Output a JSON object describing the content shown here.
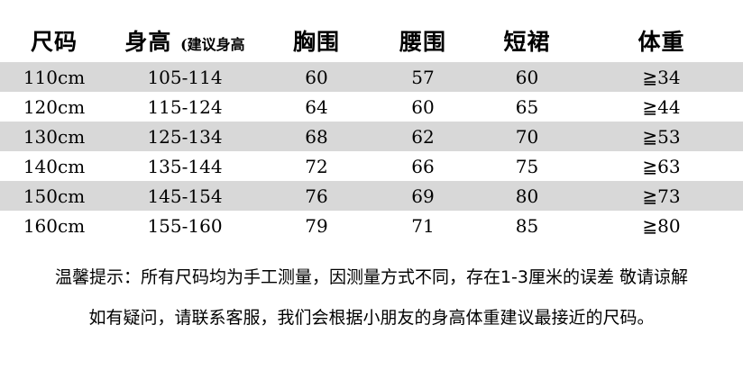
{
  "chart_data": {
    "type": "table",
    "columns": [
      {
        "label": "尺码",
        "sub": ""
      },
      {
        "label": "身高",
        "sub": "(建议身高"
      },
      {
        "label": "胸围",
        "sub": ""
      },
      {
        "label": "腰围",
        "sub": ""
      },
      {
        "label": "短裙",
        "sub": ""
      },
      {
        "label": "体重",
        "sub": ""
      }
    ],
    "rows": [
      [
        "110cm",
        "105-114",
        "60",
        "57",
        "60",
        "≧34"
      ],
      [
        "120cm",
        "115-124",
        "64",
        "60",
        "65",
        "≧44"
      ],
      [
        "130cm",
        "125-134",
        "68",
        "62",
        "70",
        "≧53"
      ],
      [
        "140cm",
        "135-144",
        "72",
        "66",
        "75",
        "≧63"
      ],
      [
        "150cm",
        "145-154",
        "76",
        "69",
        "80",
        "≧73"
      ],
      [
        "160cm",
        "155-160",
        "79",
        "71",
        "85",
        "≧80"
      ]
    ],
    "striped_row_indexes": [
      0,
      2,
      4
    ],
    "layout": {
      "stripe_color": "#d8d8d8",
      "background_color": "#ffffff",
      "text_color": "#000000",
      "grid": false,
      "borders": false
    }
  },
  "notes": {
    "line1": "温馨提示：所有尺码均为手工测量，因测量方式不同，存在1-3厘米的误差 敬请谅解",
    "line2": "如有疑问，请联系客服，我们会根据小朋友的身高体重建议最接近的尺码。"
  }
}
